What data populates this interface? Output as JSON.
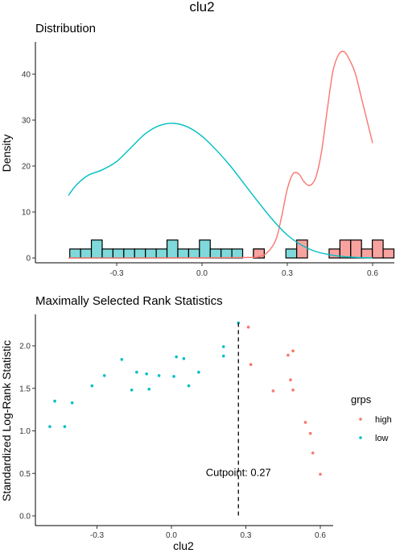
{
  "colors": {
    "high": "#F8766D",
    "low": "#00BFC4",
    "high_fill": "#F8A3A0",
    "low_fill": "#7FD9DB"
  },
  "main_title": "clu2",
  "chart_data": [
    {
      "type": "area",
      "title": "Distribution",
      "xlabel": "",
      "ylabel": "Density",
      "xlim": [
        -0.5,
        0.64
      ],
      "ylim": [
        0,
        47
      ],
      "x_ticks": [
        "-0.3",
        "0.0",
        "0.3",
        "0.6"
      ],
      "y_ticks": [
        "0",
        "10",
        "20",
        "30",
        "40"
      ],
      "grid": false,
      "histogram": {
        "bin_width": 0.038,
        "bins": [
          {
            "x": -0.465,
            "count": 1,
            "group": "low"
          },
          {
            "x": -0.427,
            "count": 1,
            "group": "low"
          },
          {
            "x": -0.389,
            "count": 2,
            "group": "low"
          },
          {
            "x": -0.351,
            "count": 1,
            "group": "low"
          },
          {
            "x": -0.313,
            "count": 1,
            "group": "low"
          },
          {
            "x": -0.275,
            "count": 1,
            "group": "low"
          },
          {
            "x": -0.237,
            "count": 1,
            "group": "low"
          },
          {
            "x": -0.199,
            "count": 1,
            "group": "low"
          },
          {
            "x": -0.161,
            "count": 1,
            "group": "low"
          },
          {
            "x": -0.123,
            "count": 2,
            "group": "low"
          },
          {
            "x": -0.085,
            "count": 1,
            "group": "low"
          },
          {
            "x": -0.047,
            "count": 1,
            "group": "low"
          },
          {
            "x": -0.009,
            "count": 2,
            "group": "low"
          },
          {
            "x": 0.029,
            "count": 1,
            "group": "low"
          },
          {
            "x": 0.067,
            "count": 1,
            "group": "low"
          },
          {
            "x": 0.105,
            "count": 1,
            "group": "low"
          },
          {
            "x": 0.181,
            "count": 1,
            "group": "low"
          },
          {
            "x": 0.181,
            "count": 1,
            "group": "high"
          },
          {
            "x": 0.295,
            "count": 1,
            "group": "low"
          },
          {
            "x": 0.333,
            "count": 2,
            "group": "high"
          },
          {
            "x": 0.447,
            "count": 1,
            "group": "high"
          },
          {
            "x": 0.485,
            "count": 2,
            "group": "high"
          },
          {
            "x": 0.523,
            "count": 2,
            "group": "high"
          },
          {
            "x": 0.561,
            "count": 1,
            "group": "high"
          },
          {
            "x": 0.599,
            "count": 2,
            "group": "high"
          },
          {
            "x": 0.637,
            "count": 1,
            "group": "high"
          }
        ]
      },
      "series": [
        {
          "name": "high",
          "x": [
            -0.47,
            -0.2,
            0.15,
            0.2,
            0.23,
            0.26,
            0.28,
            0.3,
            0.32,
            0.34,
            0.36,
            0.38,
            0.4,
            0.42,
            0.44,
            0.46,
            0.48,
            0.5,
            0.52,
            0.54,
            0.56,
            0.58,
            0.6
          ],
          "y": [
            0,
            0,
            0.1,
            0.3,
            1.2,
            4,
            9,
            15,
            18.3,
            18.3,
            16.5,
            15.8,
            17.5,
            23,
            32,
            40.5,
            44.2,
            44.9,
            43,
            40,
            35,
            30,
            25
          ]
        },
        {
          "name": "low",
          "x": [
            -0.47,
            -0.44,
            -0.4,
            -0.35,
            -0.3,
            -0.25,
            -0.2,
            -0.15,
            -0.1,
            -0.05,
            0,
            0.05,
            0.1,
            0.15,
            0.2,
            0.25,
            0.3,
            0.35,
            0.4,
            0.45,
            0.5,
            0.55,
            0.6
          ],
          "y": [
            13.6,
            16,
            18,
            19.2,
            21,
            24,
            27,
            28.8,
            29.3,
            28.5,
            26.5,
            23.5,
            20,
            16,
            12,
            8.2,
            5,
            2.8,
            1.4,
            0.7,
            0.3,
            0.1,
            0.03
          ]
        }
      ]
    },
    {
      "type": "scatter",
      "title": "Maximally Selected Rank Statistics",
      "xlabel": "clu2",
      "ylabel": "Standardized Log-Rank Statistic",
      "xlim": [
        -0.52,
        0.65
      ],
      "ylim": [
        -0.05,
        2.32
      ],
      "x_ticks": [
        "-0.3",
        "0.0",
        "0.3",
        "0.6"
      ],
      "y_ticks": [
        "0.0",
        "0.5",
        "1.0",
        "1.5",
        "2.0"
      ],
      "grid": false,
      "legend": {
        "title": "grps",
        "entries": [
          "high",
          "low"
        ],
        "placement": "right"
      },
      "cutpoint": {
        "x": 0.27,
        "label": "Cutpoint: 0.27"
      },
      "series": [
        {
          "name": "low",
          "points": [
            [
              -0.49,
              1.05
            ],
            [
              -0.47,
              1.35
            ],
            [
              -0.43,
              1.05
            ],
            [
              -0.4,
              1.33
            ],
            [
              -0.32,
              1.53
            ],
            [
              -0.27,
              1.65
            ],
            [
              -0.2,
              1.84
            ],
            [
              -0.16,
              1.48
            ],
            [
              -0.14,
              1.69
            ],
            [
              -0.1,
              1.67
            ],
            [
              -0.09,
              1.49
            ],
            [
              -0.05,
              1.65
            ],
            [
              0.01,
              1.64
            ],
            [
              0.02,
              1.87
            ],
            [
              0.05,
              1.85
            ],
            [
              0.07,
              1.53
            ],
            [
              0.11,
              1.69
            ],
            [
              0.21,
              1.99
            ],
            [
              0.21,
              1.88
            ],
            [
              0.27,
              2.27
            ]
          ]
        },
        {
          "name": "high",
          "points": [
            [
              0.31,
              2.22
            ],
            [
              0.32,
              1.78
            ],
            [
              0.41,
              1.47
            ],
            [
              0.47,
              1.89
            ],
            [
              0.48,
              1.6
            ],
            [
              0.49,
              1.94
            ],
            [
              0.49,
              1.48
            ],
            [
              0.54,
              1.1
            ],
            [
              0.56,
              0.97
            ],
            [
              0.57,
              0.74
            ],
            [
              0.6,
              0.49
            ]
          ]
        }
      ]
    }
  ]
}
